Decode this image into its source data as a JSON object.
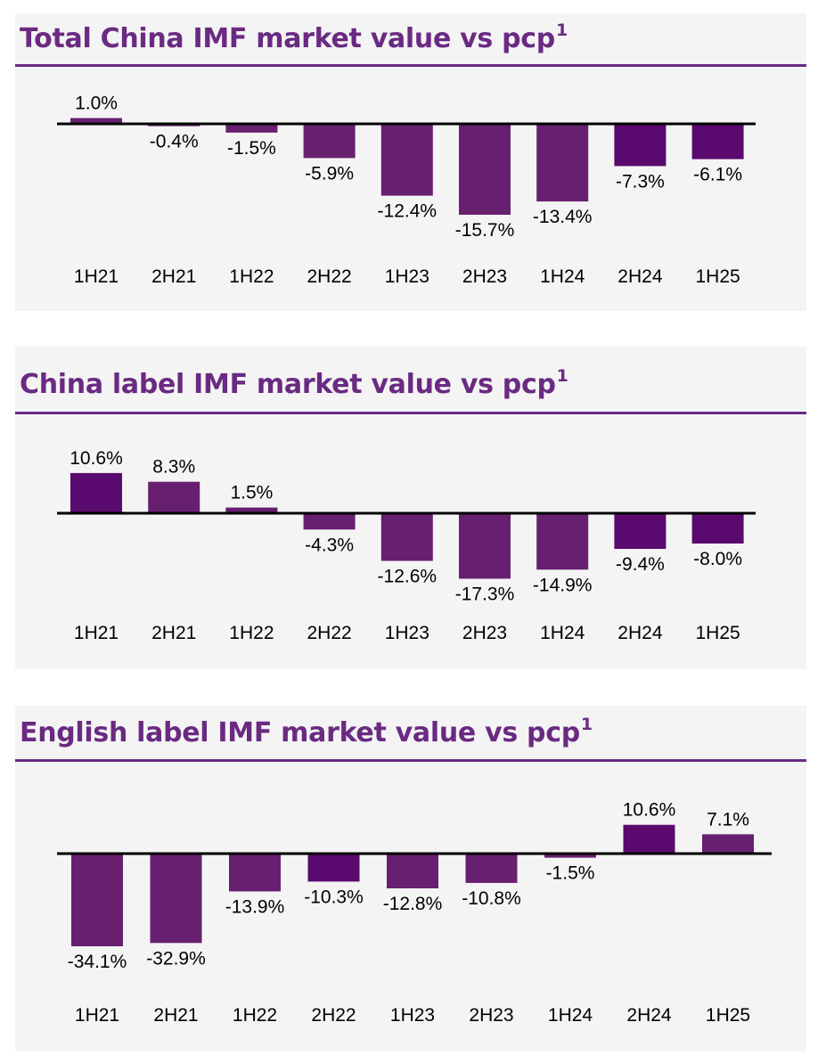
{
  "colors": {
    "title": "#6a2a82",
    "rule": "#6a2a82",
    "bar_light": "#67206f",
    "bar_dark": "#5a0a6e",
    "baseline": "#000000",
    "panel_bg": "#f4f4f4"
  },
  "chart_data": [
    {
      "type": "bar",
      "title": "Total China IMF market value vs pcp",
      "title_superscript": "1",
      "categories": [
        "1H21",
        "2H21",
        "1H22",
        "2H22",
        "1H23",
        "2H23",
        "1H24",
        "2H24",
        "1H25"
      ],
      "values": [
        1.0,
        -0.4,
        -1.5,
        -5.9,
        -12.4,
        -15.7,
        -13.4,
        -7.3,
        -6.1
      ],
      "data_labels": [
        "1.0%",
        "-0.4%",
        "-1.5%",
        "-5.9%",
        "-12.4%",
        "-15.7%",
        "-13.4%",
        "-7.3%",
        "-6.1%"
      ],
      "unit": "%",
      "grid": false,
      "legend": "none"
    },
    {
      "type": "bar",
      "title": "China label IMF market value vs pcp",
      "title_superscript": "1",
      "categories": [
        "1H21",
        "2H21",
        "1H22",
        "2H22",
        "1H23",
        "2H23",
        "1H24",
        "2H24",
        "1H25"
      ],
      "values": [
        10.6,
        8.3,
        1.5,
        -4.3,
        -12.6,
        -17.3,
        -14.9,
        -9.4,
        -8.0
      ],
      "data_labels": [
        "10.6%",
        "8.3%",
        "1.5%",
        "-4.3%",
        "-12.6%",
        "-17.3%",
        "-14.9%",
        "-9.4%",
        "-8.0%"
      ],
      "unit": "%",
      "grid": false,
      "legend": "none"
    },
    {
      "type": "bar",
      "title": "English label IMF market value vs pcp",
      "title_superscript": "1",
      "categories": [
        "1H21",
        "2H21",
        "1H22",
        "2H22",
        "1H23",
        "2H23",
        "1H24",
        "2H24",
        "1H25"
      ],
      "values": [
        -34.1,
        -32.9,
        -13.9,
        -10.3,
        -12.8,
        -10.8,
        -1.5,
        10.6,
        7.1
      ],
      "data_labels": [
        "-34.1%",
        "-32.9%",
        "-13.9%",
        "-10.3%",
        "-12.8%",
        "-10.8%",
        "-1.5%",
        "10.6%",
        "7.1%"
      ],
      "unit": "%",
      "grid": false,
      "legend": "none"
    }
  ]
}
